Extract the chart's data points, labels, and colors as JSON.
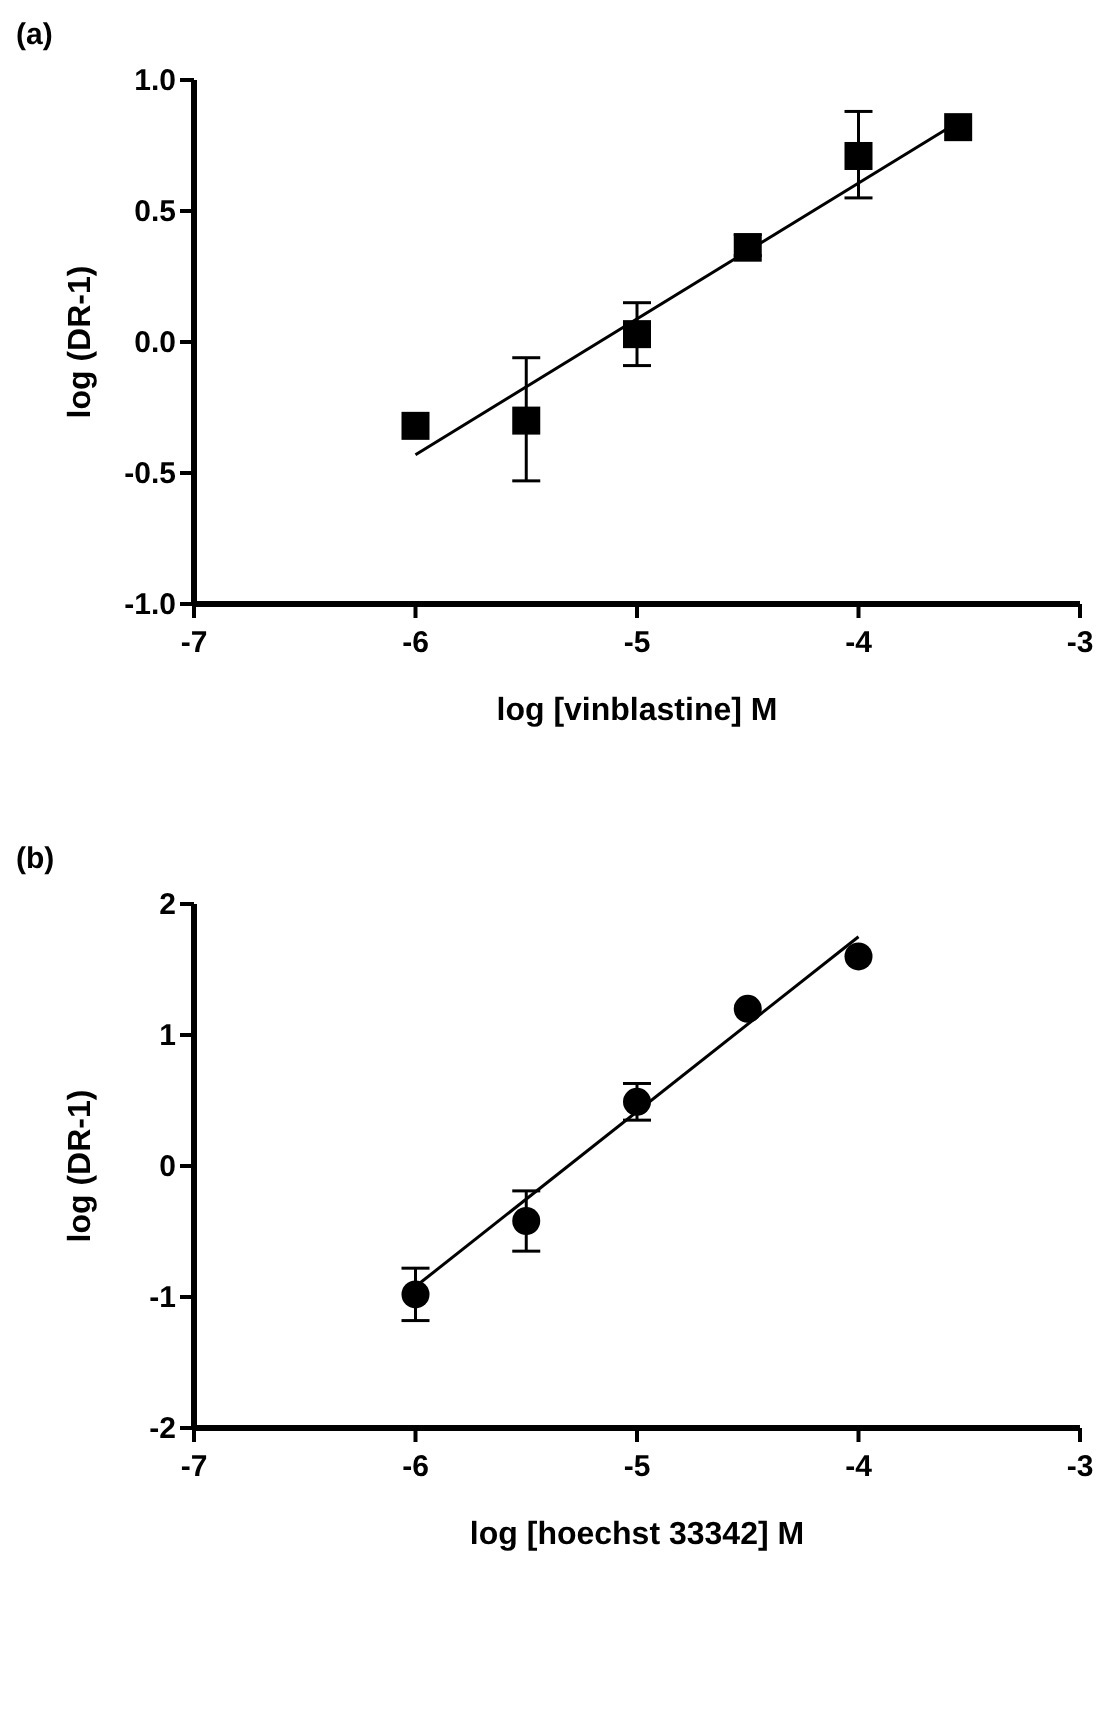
{
  "chart_data": [
    {
      "type": "scatter",
      "title": "(a)",
      "xlabel": "log [vinblastine] M",
      "ylabel": "log (DR-1)",
      "xlim": [
        -7,
        -3
      ],
      "xticks": [
        -7,
        -6,
        -5,
        -4,
        -3
      ],
      "ylim": [
        -1,
        1
      ],
      "yticks": [
        {
          "value": -1,
          "label": "-1.0"
        },
        {
          "value": -0.5,
          "label": "-0.5"
        },
        {
          "value": 0,
          "label": "0.0"
        },
        {
          "value": 0.5,
          "label": "0.5"
        },
        {
          "value": 1,
          "label": "1.0"
        }
      ],
      "grid": false,
      "series": [
        {
          "type": "scatter",
          "marker": "square",
          "color": "#000000",
          "x": [
            -6,
            -5.5,
            -5,
            -4.5,
            -4,
            -3.55
          ],
          "values": [
            -0.32,
            -0.3,
            0.03,
            0.36,
            0.71,
            0.82
          ],
          "errors": [
            null,
            [
              -0.53,
              -0.06
            ],
            [
              -0.09,
              0.15
            ],
            [
              0.33,
              0.41
            ],
            [
              0.55,
              0.88
            ],
            null
          ]
        },
        {
          "type": "line",
          "marker": "none",
          "color": "#000000",
          "x": [
            -6,
            -3.55
          ],
          "values": [
            -0.43,
            0.84
          ]
        }
      ]
    },
    {
      "type": "scatter",
      "title": "(b)",
      "xlabel": "log [hoechst 33342] M",
      "ylabel": "log (DR-1)",
      "xlim": [
        -7,
        -3
      ],
      "xticks": [
        -7,
        -6,
        -5,
        -4,
        -3
      ],
      "ylim": [
        -2,
        2
      ],
      "yticks": [
        -2,
        -1,
        0,
        1,
        2
      ],
      "grid": false,
      "series": [
        {
          "type": "scatter",
          "marker": "circle",
          "color": "#000000",
          "x": [
            -6,
            -5.5,
            -5,
            -4.5,
            -4
          ],
          "values": [
            -0.98,
            -0.42,
            0.49,
            1.2,
            1.6
          ],
          "errors": [
            [
              -1.18,
              -0.78
            ],
            [
              -0.65,
              -0.19
            ],
            [
              0.35,
              0.63
            ],
            null,
            null
          ]
        },
        {
          "type": "line",
          "marker": "none",
          "color": "#000000",
          "x": [
            -6,
            -4
          ],
          "values": [
            -0.92,
            1.75
          ]
        }
      ]
    }
  ]
}
